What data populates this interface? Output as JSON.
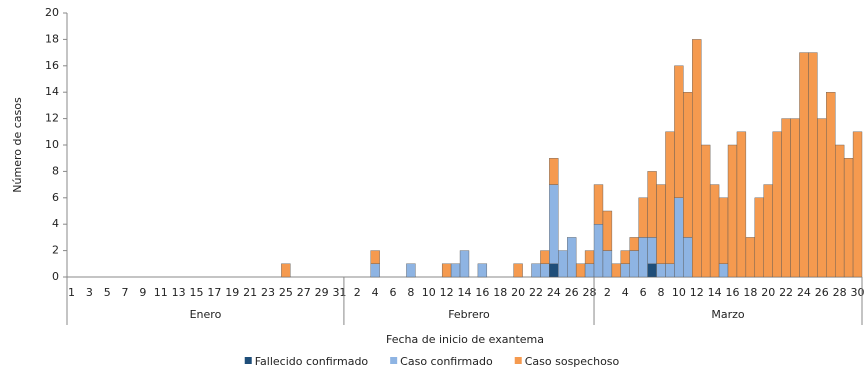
{
  "chart_data": {
    "type": "stacked-bar",
    "x_label": "Fecha de inicio de exantema",
    "y_label": "Número de casos",
    "categories": [
      "1",
      null,
      "3",
      null,
      "5",
      null,
      "7",
      null,
      "9",
      null,
      "11",
      null,
      "13",
      null,
      "15",
      null,
      "17",
      null,
      "19",
      null,
      "21",
      null,
      "23",
      null,
      "25",
      null,
      "27",
      null,
      "29",
      null,
      "31",
      null,
      "2",
      null,
      "4",
      null,
      "6",
      null,
      "8",
      null,
      "10",
      null,
      "12",
      null,
      "14",
      null,
      "16",
      null,
      "18",
      null,
      "20",
      null,
      "22",
      null,
      "24",
      null,
      "26",
      null,
      "28",
      null,
      "2",
      null,
      "4",
      null,
      "6",
      null,
      "8",
      null,
      "10",
      null,
      "12",
      null,
      "14",
      null,
      "16",
      null,
      "18",
      null,
      "20",
      null,
      "22",
      null,
      "24",
      null,
      "26",
      null,
      "28",
      null,
      "30"
    ],
    "groups": [
      "Enero",
      "Febrero",
      "Marzo"
    ],
    "series": [
      {
        "name": "Fallecido confirmado",
        "color": "#1f4e79",
        "values": [
          0,
          0,
          0,
          0,
          0,
          0,
          0,
          0,
          0,
          0,
          0,
          0,
          0,
          0,
          0,
          0,
          0,
          0,
          0,
          0,
          0,
          0,
          0,
          0,
          0,
          0,
          0,
          0,
          0,
          0,
          0,
          0,
          0,
          0,
          0,
          0,
          0,
          0,
          0,
          0,
          0,
          0,
          0,
          0,
          0,
          0,
          0,
          0,
          0,
          0,
          0,
          0,
          0,
          0,
          1,
          0,
          0,
          0,
          0,
          0,
          0,
          0,
          0,
          0,
          0,
          1,
          0,
          0,
          0,
          0,
          0,
          0,
          0,
          0,
          0,
          0,
          0,
          0,
          0,
          0,
          0,
          0,
          0,
          0,
          0,
          0,
          0,
          0,
          0
        ]
      },
      {
        "name": "Caso confirmado",
        "color": "#8eb4e3",
        "values": [
          0,
          0,
          0,
          0,
          0,
          0,
          0,
          0,
          0,
          0,
          0,
          0,
          0,
          0,
          0,
          0,
          0,
          0,
          0,
          0,
          0,
          0,
          0,
          0,
          0,
          0,
          0,
          0,
          0,
          0,
          0,
          0,
          0,
          0,
          1,
          0,
          0,
          0,
          1,
          0,
          0,
          0,
          0,
          1,
          2,
          0,
          1,
          0,
          0,
          0,
          0,
          0,
          1,
          1,
          6,
          2,
          3,
          0,
          1,
          4,
          2,
          0,
          1,
          2,
          3,
          2,
          1,
          1,
          6,
          3,
          0,
          0,
          0,
          1,
          0,
          0,
          0,
          0,
          0,
          0,
          0,
          0,
          0,
          0,
          0,
          0,
          0,
          0,
          0
        ]
      },
      {
        "name": "Caso sospechoso",
        "color": "#f59a4f",
        "values": [
          0,
          0,
          0,
          0,
          0,
          0,
          0,
          0,
          0,
          0,
          0,
          0,
          0,
          0,
          0,
          0,
          0,
          0,
          0,
          0,
          0,
          0,
          0,
          0,
          1,
          0,
          0,
          0,
          0,
          0,
          0,
          0,
          0,
          0,
          1,
          0,
          0,
          0,
          0,
          0,
          0,
          0,
          1,
          0,
          0,
          0,
          0,
          0,
          0,
          0,
          1,
          0,
          0,
          1,
          2,
          0,
          0,
          1,
          1,
          3,
          3,
          1,
          1,
          1,
          3,
          5,
          6,
          10,
          10,
          11,
          18,
          10,
          7,
          5,
          10,
          11,
          3,
          6,
          7,
          11,
          12,
          12,
          17,
          17,
          12,
          14,
          10,
          9,
          11
        ]
      }
    ],
    "ylim": [
      0,
      20
    ],
    "yticks": [
      0,
      2,
      4,
      6,
      8,
      10,
      12,
      14,
      16,
      18,
      20
    ]
  }
}
